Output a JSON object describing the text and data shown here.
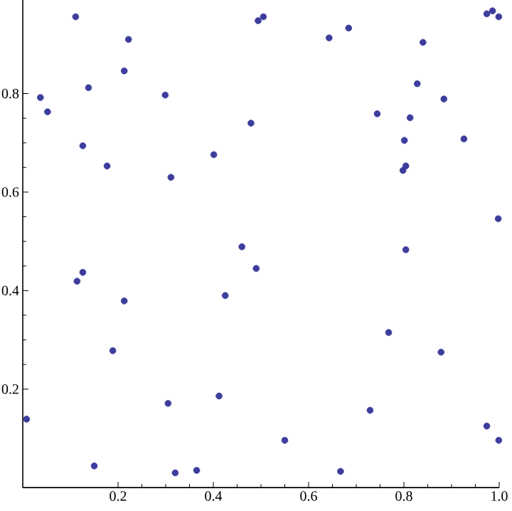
{
  "chart_data": {
    "type": "scatter",
    "color": "#3d3d9e",
    "marker": "circle",
    "x": [
      0.037,
      0.052,
      0.111,
      0.222,
      0.213,
      0.138,
      0.299,
      0.126,
      0.177,
      0.311,
      0.401,
      0.479,
      0.46,
      0.494,
      0.505,
      0.643,
      0.684,
      0.84,
      0.974,
      0.986,
      0.999,
      0.828,
      0.884,
      0.744,
      0.813,
      0.801,
      0.926,
      0.804,
      0.798,
      0.998,
      0.804,
      0.114,
      0.126,
      0.213,
      0.189,
      0.008,
      0.15,
      0.305,
      0.32,
      0.365,
      0.412,
      0.425,
      0.49,
      0.55,
      0.667,
      0.729,
      0.768,
      0.878,
      0.974,
      0.999
    ],
    "values": [
      0.792,
      0.763,
      0.956,
      0.91,
      0.846,
      0.812,
      0.797,
      0.694,
      0.653,
      0.63,
      0.676,
      0.74,
      0.489,
      0.948,
      0.956,
      0.913,
      0.933,
      0.904,
      0.962,
      0.968,
      0.956,
      0.82,
      0.789,
      0.759,
      0.751,
      0.705,
      0.708,
      0.653,
      0.644,
      0.546,
      0.483,
      0.419,
      0.437,
      0.379,
      0.278,
      0.139,
      0.044,
      0.171,
      0.03,
      0.035,
      0.186,
      0.39,
      0.445,
      0.096,
      0.033,
      0.157,
      0.315,
      0.275,
      0.125,
      0.096
    ],
    "xlim": [
      0,
      1
    ],
    "ylim": [
      0,
      0.99
    ],
    "xticks": [
      0.2,
      0.4,
      0.6,
      0.8,
      {
        "value": 1,
        "label": "1.0"
      }
    ],
    "yticks": [
      0.2,
      0.4,
      0.6,
      0.8
    ]
  }
}
